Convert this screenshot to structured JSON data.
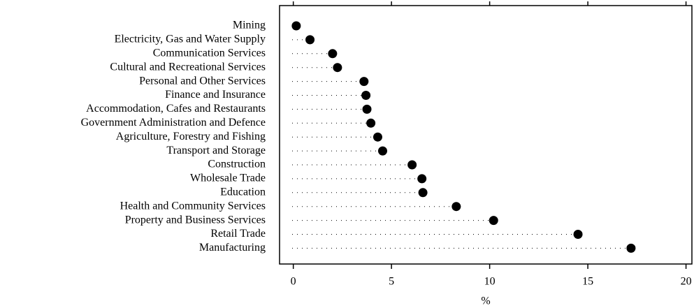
{
  "chart_data": {
    "type": "dot",
    "categories": [
      "Mining",
      "Electricity, Gas and Water Supply",
      "Communication Services",
      "Cultural and Recreational Services",
      "Personal and Other Services",
      "Finance and Insurance",
      "Accommodation, Cafes and Restaurants",
      "Government Administration and Defence",
      "Agriculture, Forestry and Fishing",
      "Transport and Storage",
      "Construction",
      "Wholesale Trade",
      "Education",
      "Health and Community Services",
      "Property and Business Services",
      "Retail Trade",
      "Manufacturing"
    ],
    "values": [
      0.15,
      0.85,
      2.0,
      2.25,
      3.6,
      3.7,
      3.75,
      3.95,
      4.3,
      4.55,
      6.05,
      6.55,
      6.6,
      8.3,
      10.2,
      14.5,
      17.2
    ],
    "color": "#000000",
    "x_label": "%",
    "xlim": [
      -0.7,
      20.3
    ],
    "xticks": [
      0,
      5,
      10,
      15,
      20
    ]
  }
}
